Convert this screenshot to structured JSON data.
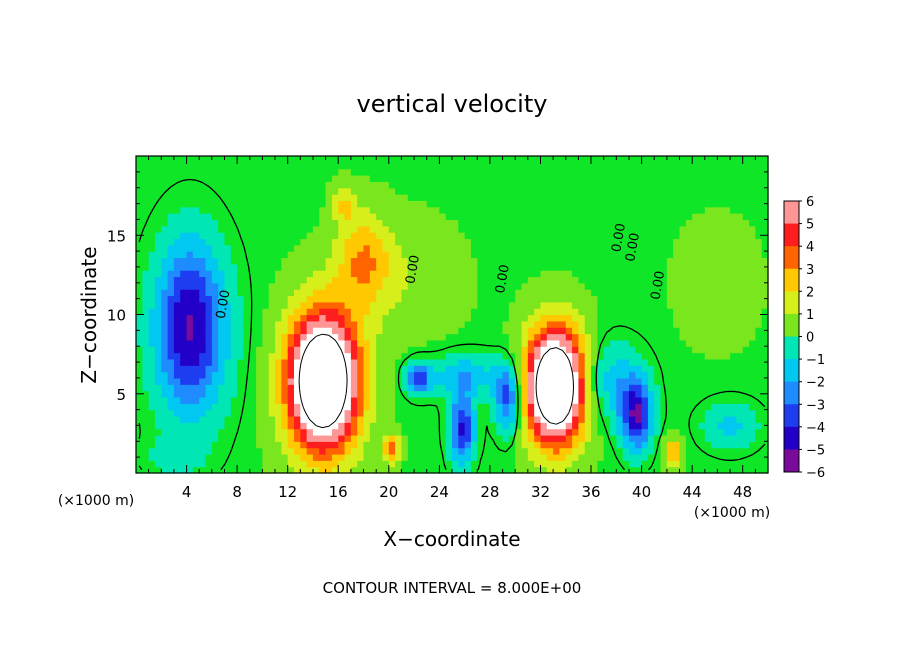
{
  "chart_data": {
    "type": "heatmap",
    "title": "vertical velocity",
    "xlabel": "X−coordinate",
    "ylabel": "Z−coordinate",
    "x_unit_label": "(×1000 m)",
    "z_unit_label": "(×1000 m)",
    "xlim": [
      0,
      50
    ],
    "ylim": [
      0,
      20
    ],
    "x_ticks": [
      4,
      8,
      12,
      16,
      20,
      24,
      28,
      32,
      36,
      40,
      44,
      48
    ],
    "y_ticks": [
      5,
      10,
      15
    ],
    "contour_interval_text": "CONTOUR INTERVAL = 8.000E+00",
    "contour_labels": [
      "0.00",
      "0.00",
      "0.00",
      "0.00",
      "0.00",
      "0.00"
    ],
    "colorbar": {
      "min": -6,
      "max": 6,
      "ticks": [
        6,
        5,
        4,
        3,
        2,
        1,
        0,
        -1,
        -2,
        -3,
        -4,
        -5,
        -6
      ],
      "tick_labels": [
        "6",
        "5",
        "4",
        "3",
        "2",
        "1",
        "0",
        "−1",
        "−2",
        "−3",
        "−4",
        "−5",
        "−6"
      ]
    },
    "background_value": 0.3,
    "features": [
      {
        "x": 4.2,
        "z": 9.5,
        "rx": 3.2,
        "rz": 6.5,
        "value": -4.0
      },
      {
        "x": 4.5,
        "z": 8.5,
        "rx": 4.5,
        "rz": 7.5,
        "value": -2.0
      },
      {
        "x": 14.8,
        "z": 5.8,
        "rx": 3.2,
        "rz": 5.0,
        "value": 9.0
      },
      {
        "x": 14.8,
        "z": 5.8,
        "rx": 4.3,
        "rz": 6.5,
        "value": 3.5
      },
      {
        "x": 18.0,
        "z": 13.5,
        "rx": 2.8,
        "rz": 3.8,
        "value": 3.0
      },
      {
        "x": 16.5,
        "z": 17.0,
        "rx": 1.2,
        "rz": 1.6,
        "value": 2.0
      },
      {
        "x": 33.2,
        "z": 5.5,
        "rx": 2.7,
        "rz": 4.2,
        "value": 9.0
      },
      {
        "x": 33.2,
        "z": 5.5,
        "rx": 3.4,
        "rz": 5.2,
        "value": 3.5
      },
      {
        "x": 39.6,
        "z": 3.6,
        "rx": 1.6,
        "rz": 2.8,
        "value": -5.5
      },
      {
        "x": 37.5,
        "z": 5.8,
        "rx": 3.3,
        "rz": 3.2,
        "value": -2.5
      },
      {
        "x": 25.8,
        "z": 2.8,
        "rx": 1.3,
        "rz": 2.8,
        "value": -5.0
      },
      {
        "x": 29.4,
        "z": 4.6,
        "rx": 1.3,
        "rz": 2.8,
        "value": -4.5
      },
      {
        "x": 22.3,
        "z": 6.0,
        "rx": 1.3,
        "rz": 1.3,
        "value": -4.0
      },
      {
        "x": 26.0,
        "z": 6.2,
        "rx": 4.0,
        "rz": 1.8,
        "value": -2.5
      },
      {
        "x": 20.2,
        "z": 1.5,
        "rx": 0.9,
        "rz": 1.2,
        "value": 3.5
      },
      {
        "x": 42.5,
        "z": 1.3,
        "rx": 0.9,
        "rz": 1.2,
        "value": 3.5
      },
      {
        "x": 46.0,
        "z": 12.0,
        "rx": 3.8,
        "rz": 4.5,
        "value": 1.2
      },
      {
        "x": 47.0,
        "z": 3.0,
        "rx": 3.0,
        "rz": 2.0,
        "value": -2.0
      },
      {
        "x": 3.0,
        "z": 1.0,
        "rx": 3.0,
        "rz": 1.5,
        "value": -1.0
      },
      {
        "x": 22.0,
        "z": 12.0,
        "rx": 5.0,
        "rz": 5.0,
        "value": 1.0
      }
    ]
  }
}
